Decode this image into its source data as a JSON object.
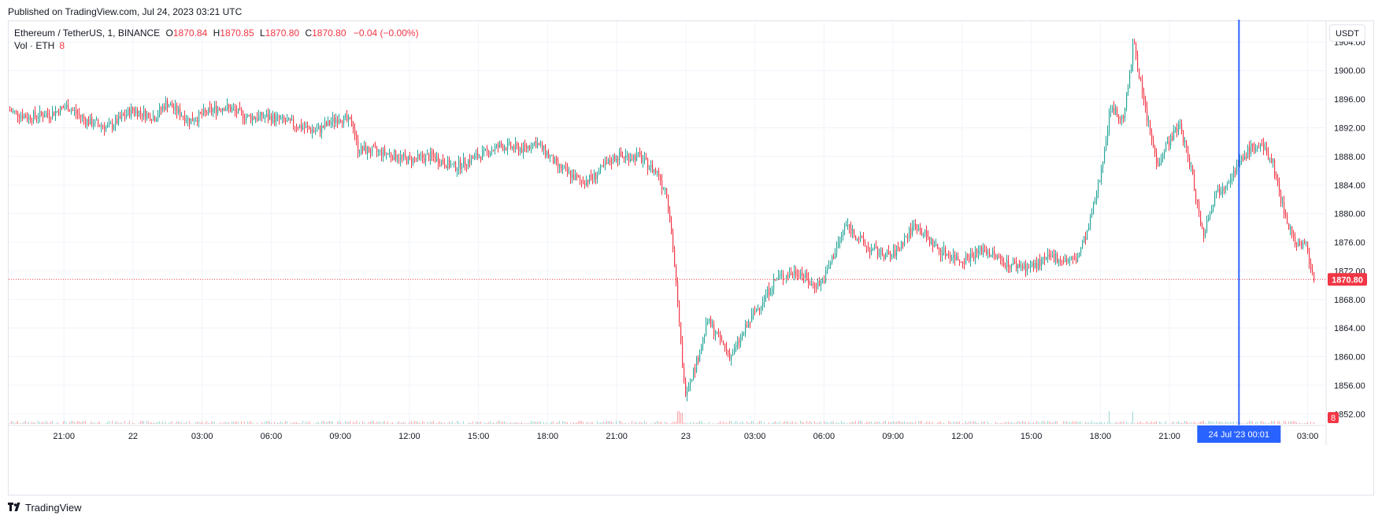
{
  "header": {
    "published": "Published on TradingView.com, Jul 24, 2023 03:21 UTC"
  },
  "legend": {
    "symbol": "Ethereum / TetherUS, 1, BINANCE",
    "o_label": "O",
    "o_value": "1870.84",
    "h_label": "H",
    "h_value": "1870.85",
    "l_label": "L",
    "l_value": "1870.80",
    "c_label": "C",
    "c_value": "1870.80",
    "change": "−0.04 (−0.00%)",
    "volume_label": "Vol · ETH",
    "volume_value": "8"
  },
  "currency_button": "USDT",
  "footer": {
    "brand": "TradingView",
    "logo_icon": "tradingview-logo-icon"
  },
  "colors": {
    "up": "#26a69a",
    "down": "#f23645",
    "crosshair": "#2962ff",
    "grid": "#f0f3fa",
    "axis_text": "#131722"
  },
  "chart_data": {
    "type": "candlestick",
    "symbol": "ETHUSDT",
    "interval": "1m",
    "y_axis": {
      "ticks": [
        1852.0,
        1856.0,
        1860.0,
        1864.0,
        1868.0,
        1872.0,
        1876.0,
        1880.0,
        1884.0,
        1888.0,
        1892.0,
        1896.0,
        1900.0,
        1904.0
      ],
      "ylim": [
        1850.6,
        1906.9
      ],
      "position": "right"
    },
    "x_axis": {
      "labels": [
        "21:00",
        "22",
        "03:00",
        "06:00",
        "09:00",
        "12:00",
        "15:00",
        "18:00",
        "21:00",
        "23",
        "03:00",
        "06:00",
        "09:00",
        "12:00",
        "15:00",
        "18:00",
        "21:00",
        "03:00"
      ],
      "label_hours": [
        21,
        24,
        27,
        30,
        33,
        36,
        39,
        42,
        45,
        48,
        51,
        54,
        57,
        60,
        63,
        66,
        69,
        75
      ],
      "xlim_hours": [
        18.6,
        75.8
      ],
      "hour_unit_note": "hours since Jul 21 00:00 UTC"
    },
    "price_path": {
      "hours": [
        18.6,
        19.5,
        20.5,
        21.2,
        22.0,
        23.0,
        24.0,
        25.0,
        25.5,
        26.5,
        27.5,
        28.0,
        29.0,
        30.0,
        31.0,
        32.0,
        33.0,
        33.6,
        33.8,
        35.0,
        36.0,
        37.0,
        38.0,
        39.0,
        40.0,
        41.0,
        41.5,
        42.0,
        42.5,
        43.5,
        44.0,
        45.0,
        46.0,
        46.5,
        46.9,
        47.0,
        47.2,
        47.5,
        48.0,
        48.5,
        49.0,
        50.0,
        51.0,
        52.0,
        53.0,
        53.5,
        54.0,
        55.0,
        56.0,
        57.0,
        58.0,
        59.0,
        60.0,
        61.0,
        62.0,
        63.0,
        64.0,
        64.5,
        65.0,
        65.5,
        66.0,
        66.5,
        67.0,
        67.3,
        67.5,
        67.8,
        68.0,
        68.5,
        69.0,
        69.5,
        70.0,
        70.5,
        71.0,
        71.5,
        72.0,
        72.5,
        73.0,
        73.5,
        74.0,
        74.5,
        75.0,
        75.3
      ],
      "values": [
        1894.5,
        1893.5,
        1894.0,
        1895.0,
        1893.0,
        1892.0,
        1894.5,
        1893.5,
        1895.5,
        1893.0,
        1894.5,
        1895.0,
        1893.5,
        1893.5,
        1892.5,
        1891.5,
        1893.5,
        1892.5,
        1889.0,
        1888.5,
        1887.5,
        1888.0,
        1886.5,
        1888.0,
        1889.5,
        1889.0,
        1890.0,
        1888.5,
        1886.5,
        1884.5,
        1885.0,
        1888.0,
        1888.0,
        1886.5,
        1885.5,
        1884.0,
        1883.5,
        1875.0,
        1855.0,
        1859.0,
        1865.0,
        1860.0,
        1866.0,
        1871.0,
        1872.0,
        1870.0,
        1870.5,
        1878.5,
        1875.0,
        1874.0,
        1878.5,
        1875.0,
        1873.5,
        1875.0,
        1873.0,
        1872.5,
        1874.0,
        1873.5,
        1873.5,
        1877.5,
        1884.5,
        1895.0,
        1893.0,
        1898.5,
        1904.5,
        1898.0,
        1894.5,
        1887.0,
        1890.0,
        1892.5,
        1886.0,
        1877.0,
        1882.5,
        1884.5,
        1886.5,
        1889.0,
        1889.5,
        1887.5,
        1880.5,
        1876.0,
        1875.5,
        1870.8
      ]
    },
    "last_price": {
      "value": 1870.8,
      "label": "1870.80"
    },
    "volume": {
      "last_label": "8",
      "unit": "ETH"
    },
    "crosshair": {
      "x_hour": 72.0167,
      "label": "24 Jul '23   00:01"
    },
    "grid": true,
    "legend_position": "top-left"
  }
}
